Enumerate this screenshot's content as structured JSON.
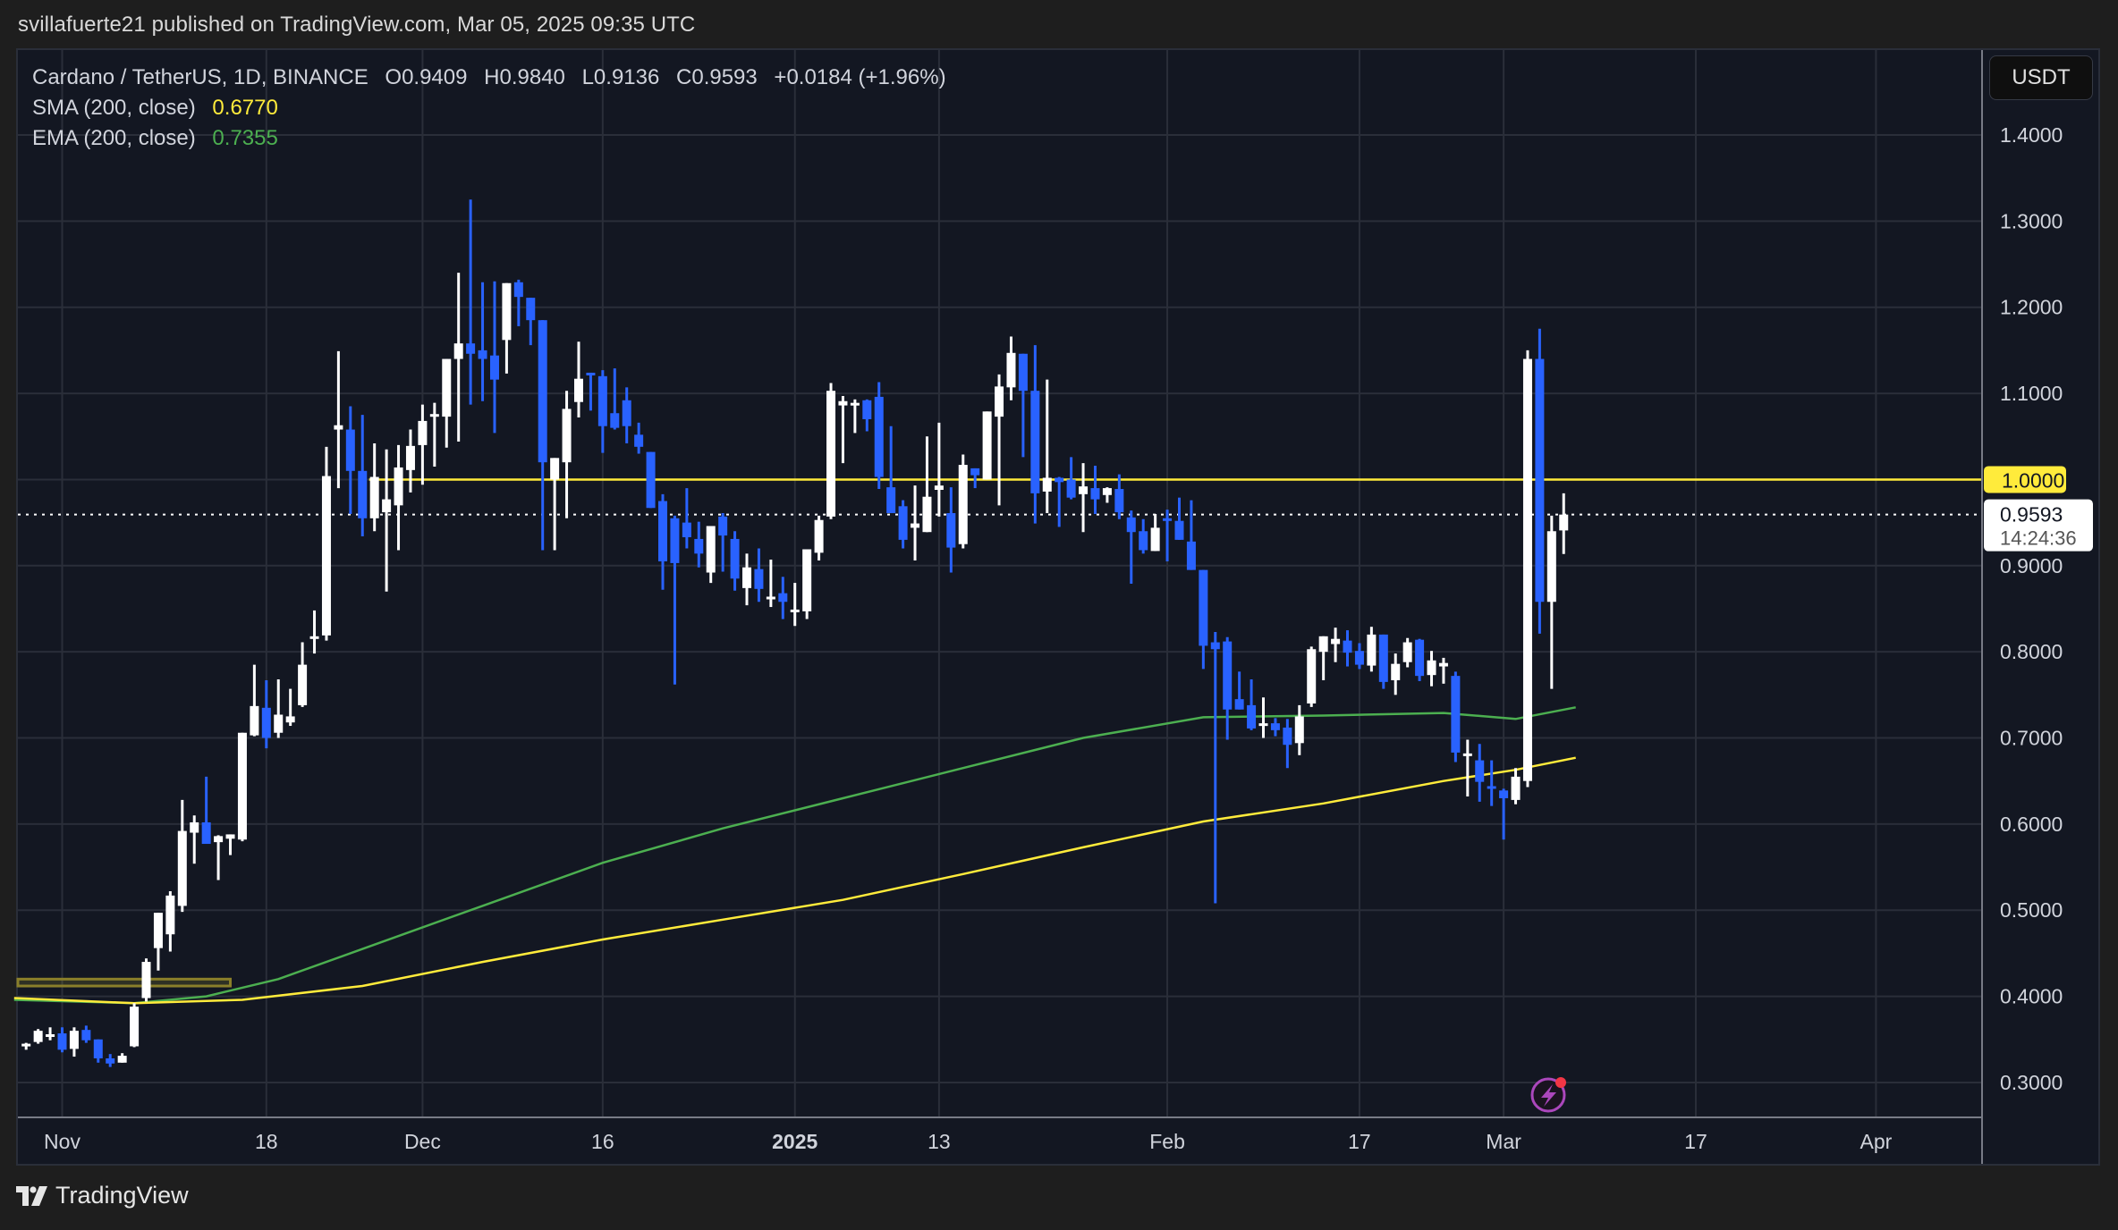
{
  "header": {
    "published_text": "svillafuerte21 published on TradingView.com, Mar 05, 2025 09:35 UTC"
  },
  "legend": {
    "symbol": "Cardano / TetherUS, 1D, BINANCE",
    "open_label": "O",
    "open": "0.9409",
    "high_label": "H",
    "high": "0.9840",
    "low_label": "L",
    "low": "0.9136",
    "close_label": "C",
    "close": "0.9593",
    "change": "+0.0184 (+1.96%)",
    "sma_label": "SMA (200, close)",
    "sma_value": "0.6770",
    "ema_label": "EMA (200, close)",
    "ema_value": "0.7355"
  },
  "price_scale": {
    "currency_button": "USDT",
    "ticks": [
      "1.4000",
      "1.3000",
      "1.2000",
      "1.1000",
      "1.0000",
      "0.9000",
      "0.8000",
      "0.7000",
      "0.6000",
      "0.5000",
      "0.4000",
      "0.3000"
    ],
    "horizontal_line_label": "1.0000",
    "last_price_label": "0.9593",
    "countdown_label": "14:24:36"
  },
  "time_scale": {
    "ticks": [
      {
        "label": "Nov",
        "day": 0,
        "bold": false
      },
      {
        "label": "18",
        "day": 17,
        "bold": false
      },
      {
        "label": "Dec",
        "day": 30,
        "bold": false
      },
      {
        "label": "16",
        "day": 45,
        "bold": false
      },
      {
        "label": "2025",
        "day": 61,
        "bold": true
      },
      {
        "label": "13",
        "day": 73,
        "bold": false
      },
      {
        "label": "Feb",
        "day": 92,
        "bold": false
      },
      {
        "label": "17",
        "day": 108,
        "bold": false
      },
      {
        "label": "Mar",
        "day": 120,
        "bold": false
      },
      {
        "label": "17",
        "day": 136,
        "bold": false
      },
      {
        "label": "Apr",
        "day": 151,
        "bold": false
      }
    ]
  },
  "footer": {
    "brand": "TradingView"
  },
  "colors": {
    "up": "#ffffff",
    "down": "#2962ff",
    "sma": "#ffeb3b",
    "ema": "#4caf50",
    "grid": "#2a2e39",
    "hline": "#ffeb3b",
    "background": "#131722"
  },
  "chart_data": {
    "type": "candlestick",
    "title": "Cardano / TetherUS, 1D, BINANCE",
    "xlabel": "",
    "ylabel": "USDT",
    "ylim": [
      0.28,
      1.42
    ],
    "x_unit": "days since Nov 1, 2024",
    "legend": [
      "SMA (200, close) 0.6770",
      "EMA (200, close) 0.7355"
    ],
    "annotations": [
      {
        "type": "horizontal_line",
        "price": 1.0,
        "from_day": 26,
        "label": "1.0000",
        "color": "#ffeb3b"
      },
      {
        "type": "rectangle",
        "price_low": 0.412,
        "price_high": 0.42,
        "from_day": -4,
        "to_day": 14,
        "color": "#ffeb3b"
      },
      {
        "type": "last_price_line",
        "price": 0.9593
      }
    ],
    "candles": [
      {
        "d": -3,
        "o": 0.343,
        "h": 0.346,
        "l": 0.338,
        "c": 0.345
      },
      {
        "d": -2,
        "o": 0.347,
        "h": 0.362,
        "l": 0.345,
        "c": 0.36
      },
      {
        "d": -1,
        "o": 0.355,
        "h": 0.364,
        "l": 0.349,
        "c": 0.356
      },
      {
        "d": 0,
        "o": 0.357,
        "h": 0.364,
        "l": 0.335,
        "c": 0.338
      },
      {
        "d": 1,
        "o": 0.339,
        "h": 0.364,
        "l": 0.33,
        "c": 0.36
      },
      {
        "d": 2,
        "o": 0.361,
        "h": 0.366,
        "l": 0.346,
        "c": 0.349
      },
      {
        "d": 3,
        "o": 0.35,
        "h": 0.35,
        "l": 0.323,
        "c": 0.328
      },
      {
        "d": 4,
        "o": 0.328,
        "h": 0.333,
        "l": 0.318,
        "c": 0.322
      },
      {
        "d": 5,
        "o": 0.323,
        "h": 0.334,
        "l": 0.323,
        "c": 0.331
      },
      {
        "d": 6,
        "o": 0.342,
        "h": 0.392,
        "l": 0.341,
        "c": 0.388
      },
      {
        "d": 7,
        "o": 0.398,
        "h": 0.444,
        "l": 0.394,
        "c": 0.44
      },
      {
        "d": 8,
        "o": 0.456,
        "h": 0.482,
        "l": 0.43,
        "c": 0.497
      },
      {
        "d": 9,
        "o": 0.472,
        "h": 0.522,
        "l": 0.452,
        "c": 0.517
      },
      {
        "d": 10,
        "o": 0.505,
        "h": 0.628,
        "l": 0.498,
        "c": 0.592
      },
      {
        "d": 11,
        "o": 0.59,
        "h": 0.61,
        "l": 0.554,
        "c": 0.602
      },
      {
        "d": 12,
        "o": 0.602,
        "h": 0.655,
        "l": 0.578,
        "c": 0.577
      },
      {
        "d": 13,
        "o": 0.579,
        "h": 0.587,
        "l": 0.535,
        "c": 0.586
      },
      {
        "d": 14,
        "o": 0.583,
        "h": 0.583,
        "l": 0.564,
        "c": 0.588
      },
      {
        "d": 15,
        "o": 0.582,
        "h": 0.62,
        "l": 0.58,
        "c": 0.706
      },
      {
        "d": 16,
        "o": 0.703,
        "h": 0.785,
        "l": 0.702,
        "c": 0.737
      },
      {
        "d": 17,
        "o": 0.735,
        "h": 0.767,
        "l": 0.688,
        "c": 0.7
      },
      {
        "d": 18,
        "o": 0.706,
        "h": 0.768,
        "l": 0.7,
        "c": 0.727
      },
      {
        "d": 19,
        "o": 0.718,
        "h": 0.757,
        "l": 0.714,
        "c": 0.725
      },
      {
        "d": 20,
        "o": 0.738,
        "h": 0.811,
        "l": 0.736,
        "c": 0.785
      },
      {
        "d": 21,
        "o": 0.817,
        "h": 0.848,
        "l": 0.798,
        "c": 0.818
      },
      {
        "d": 22,
        "o": 0.819,
        "h": 1.038,
        "l": 0.813,
        "c": 1.004
      },
      {
        "d": 23,
        "o": 1.058,
        "h": 1.149,
        "l": 0.99,
        "c": 1.063
      },
      {
        "d": 24,
        "o": 1.058,
        "h": 1.085,
        "l": 0.96,
        "c": 1.01
      },
      {
        "d": 25,
        "o": 1.01,
        "h": 1.075,
        "l": 0.934,
        "c": 0.955
      },
      {
        "d": 26,
        "o": 0.955,
        "h": 1.042,
        "l": 0.94,
        "c": 1.003
      },
      {
        "d": 27,
        "o": 0.962,
        "h": 1.035,
        "l": 0.87,
        "c": 0.977
      },
      {
        "d": 28,
        "o": 0.97,
        "h": 1.04,
        "l": 0.918,
        "c": 1.014
      },
      {
        "d": 29,
        "o": 1.011,
        "h": 1.058,
        "l": 0.985,
        "c": 1.039
      },
      {
        "d": 30,
        "o": 1.04,
        "h": 1.087,
        "l": 0.994,
        "c": 1.068
      },
      {
        "d": 31,
        "o": 1.075,
        "h": 1.089,
        "l": 1.015,
        "c": 1.076
      },
      {
        "d": 32,
        "o": 1.073,
        "h": 1.127,
        "l": 1.037,
        "c": 1.14
      },
      {
        "d": 33,
        "o": 1.14,
        "h": 1.24,
        "l": 1.044,
        "c": 1.158
      },
      {
        "d": 34,
        "o": 1.158,
        "h": 1.325,
        "l": 1.087,
        "c": 1.146
      },
      {
        "d": 35,
        "o": 1.15,
        "h": 1.229,
        "l": 1.091,
        "c": 1.14
      },
      {
        "d": 36,
        "o": 1.144,
        "h": 1.23,
        "l": 1.054,
        "c": 1.116
      },
      {
        "d": 37,
        "o": 1.162,
        "h": 1.225,
        "l": 1.123,
        "c": 1.228
      },
      {
        "d": 38,
        "o": 1.229,
        "h": 1.232,
        "l": 1.178,
        "c": 1.212
      },
      {
        "d": 39,
        "o": 1.211,
        "h": 1.211,
        "l": 1.156,
        "c": 1.185
      },
      {
        "d": 40,
        "o": 1.185,
        "h": 1.185,
        "l": 0.918,
        "c": 1.02
      },
      {
        "d": 41,
        "o": 1.0,
        "h": 1.022,
        "l": 0.918,
        "c": 1.025
      },
      {
        "d": 42,
        "o": 1.02,
        "h": 1.103,
        "l": 0.955,
        "c": 1.082
      },
      {
        "d": 43,
        "o": 1.09,
        "h": 1.16,
        "l": 1.072,
        "c": 1.117
      },
      {
        "d": 44,
        "o": 1.124,
        "h": 1.124,
        "l": 1.08,
        "c": 1.123
      },
      {
        "d": 45,
        "o": 1.12,
        "h": 1.127,
        "l": 1.031,
        "c": 1.062
      },
      {
        "d": 46,
        "o": 1.077,
        "h": 1.129,
        "l": 1.058,
        "c": 1.06
      },
      {
        "d": 47,
        "o": 1.092,
        "h": 1.107,
        "l": 1.042,
        "c": 1.062
      },
      {
        "d": 48,
        "o": 1.052,
        "h": 1.066,
        "l": 1.03,
        "c": 1.038
      },
      {
        "d": 49,
        "o": 1.032,
        "h": 1.02,
        "l": 0.97,
        "c": 0.967
      },
      {
        "d": 50,
        "o": 0.975,
        "h": 0.983,
        "l": 0.872,
        "c": 0.905
      },
      {
        "d": 51,
        "o": 0.955,
        "h": 0.958,
        "l": 0.762,
        "c": 0.903
      },
      {
        "d": 52,
        "o": 0.95,
        "h": 0.99,
        "l": 0.92,
        "c": 0.933
      },
      {
        "d": 53,
        "o": 0.931,
        "h": 0.951,
        "l": 0.898,
        "c": 0.914
      },
      {
        "d": 54,
        "o": 0.892,
        "h": 0.937,
        "l": 0.88,
        "c": 0.946
      },
      {
        "d": 55,
        "o": 0.957,
        "h": 0.961,
        "l": 0.893,
        "c": 0.935
      },
      {
        "d": 56,
        "o": 0.931,
        "h": 0.94,
        "l": 0.871,
        "c": 0.885
      },
      {
        "d": 57,
        "o": 0.874,
        "h": 0.914,
        "l": 0.854,
        "c": 0.898
      },
      {
        "d": 58,
        "o": 0.896,
        "h": 0.92,
        "l": 0.858,
        "c": 0.873
      },
      {
        "d": 59,
        "o": 0.862,
        "h": 0.907,
        "l": 0.852,
        "c": 0.864
      },
      {
        "d": 60,
        "o": 0.868,
        "h": 0.887,
        "l": 0.838,
        "c": 0.858
      },
      {
        "d": 61,
        "o": 0.847,
        "h": 0.88,
        "l": 0.83,
        "c": 0.849
      },
      {
        "d": 62,
        "o": 0.847,
        "h": 0.902,
        "l": 0.838,
        "c": 0.919
      },
      {
        "d": 63,
        "o": 0.915,
        "h": 0.958,
        "l": 0.906,
        "c": 0.953
      },
      {
        "d": 64,
        "o": 0.957,
        "h": 1.112,
        "l": 0.954,
        "c": 1.103
      },
      {
        "d": 65,
        "o": 1.086,
        "h": 1.097,
        "l": 1.019,
        "c": 1.091
      },
      {
        "d": 66,
        "o": 1.087,
        "h": 1.093,
        "l": 1.054,
        "c": 1.089
      },
      {
        "d": 67,
        "o": 1.092,
        "h": 1.093,
        "l": 1.056,
        "c": 1.07
      },
      {
        "d": 68,
        "o": 1.096,
        "h": 1.113,
        "l": 0.989,
        "c": 1.003
      },
      {
        "d": 69,
        "o": 0.991,
        "h": 1.062,
        "l": 0.969,
        "c": 0.961
      },
      {
        "d": 70,
        "o": 0.969,
        "h": 0.976,
        "l": 0.92,
        "c": 0.93
      },
      {
        "d": 71,
        "o": 0.944,
        "h": 0.993,
        "l": 0.906,
        "c": 0.949
      },
      {
        "d": 72,
        "o": 0.939,
        "h": 1.05,
        "l": 0.939,
        "c": 0.98
      },
      {
        "d": 73,
        "o": 0.988,
        "h": 1.066,
        "l": 0.957,
        "c": 0.993
      },
      {
        "d": 74,
        "o": 0.961,
        "h": 0.991,
        "l": 0.892,
        "c": 0.921
      },
      {
        "d": 75,
        "o": 0.925,
        "h": 1.029,
        "l": 0.92,
        "c": 1.017
      },
      {
        "d": 76,
        "o": 1.013,
        "h": 1.004,
        "l": 0.99,
        "c": 1.005
      },
      {
        "d": 77,
        "o": 1.0,
        "h": 1.074,
        "l": 1.0,
        "c": 1.079
      },
      {
        "d": 78,
        "o": 1.073,
        "h": 1.122,
        "l": 0.97,
        "c": 1.108
      },
      {
        "d": 79,
        "o": 1.107,
        "h": 1.166,
        "l": 1.092,
        "c": 1.147
      },
      {
        "d": 80,
        "o": 1.146,
        "h": 1.145,
        "l": 1.026,
        "c": 1.103
      },
      {
        "d": 81,
        "o": 1.103,
        "h": 1.156,
        "l": 0.949,
        "c": 0.984
      },
      {
        "d": 82,
        "o": 0.986,
        "h": 1.116,
        "l": 0.961,
        "c": 1.002
      },
      {
        "d": 83,
        "o": 1.002,
        "h": 1.003,
        "l": 0.945,
        "c": 0.997
      },
      {
        "d": 84,
        "o": 1.0,
        "h": 1.026,
        "l": 0.977,
        "c": 0.979
      },
      {
        "d": 85,
        "o": 0.983,
        "h": 1.019,
        "l": 0.939,
        "c": 0.992
      },
      {
        "d": 86,
        "o": 0.99,
        "h": 1.016,
        "l": 0.96,
        "c": 0.977
      },
      {
        "d": 87,
        "o": 0.982,
        "h": 0.991,
        "l": 0.973,
        "c": 0.99
      },
      {
        "d": 88,
        "o": 0.989,
        "h": 1.006,
        "l": 0.954,
        "c": 0.962
      },
      {
        "d": 89,
        "o": 0.956,
        "h": 0.964,
        "l": 0.879,
        "c": 0.939
      },
      {
        "d": 90,
        "o": 0.94,
        "h": 0.954,
        "l": 0.914,
        "c": 0.918
      },
      {
        "d": 91,
        "o": 0.917,
        "h": 0.96,
        "l": 0.917,
        "c": 0.944
      },
      {
        "d": 92,
        "o": 0.955,
        "h": 0.965,
        "l": 0.905,
        "c": 0.952
      },
      {
        "d": 93,
        "o": 0.952,
        "h": 0.979,
        "l": 0.936,
        "c": 0.93
      },
      {
        "d": 94,
        "o": 0.928,
        "h": 0.976,
        "l": 0.9,
        "c": 0.895
      },
      {
        "d": 95,
        "o": 0.895,
        "h": 0.895,
        "l": 0.78,
        "c": 0.807
      },
      {
        "d": 96,
        "o": 0.811,
        "h": 0.823,
        "l": 0.508,
        "c": 0.803
      },
      {
        "d": 97,
        "o": 0.812,
        "h": 0.817,
        "l": 0.698,
        "c": 0.733
      },
      {
        "d": 98,
        "o": 0.745,
        "h": 0.777,
        "l": 0.735,
        "c": 0.733
      },
      {
        "d": 99,
        "o": 0.738,
        "h": 0.768,
        "l": 0.709,
        "c": 0.711
      },
      {
        "d": 100,
        "o": 0.717,
        "h": 0.747,
        "l": 0.7,
        "c": 0.717
      },
      {
        "d": 101,
        "o": 0.717,
        "h": 0.723,
        "l": 0.702,
        "c": 0.709
      },
      {
        "d": 102,
        "o": 0.712,
        "h": 0.722,
        "l": 0.665,
        "c": 0.692
      },
      {
        "d": 103,
        "o": 0.694,
        "h": 0.738,
        "l": 0.68,
        "c": 0.725
      },
      {
        "d": 104,
        "o": 0.74,
        "h": 0.806,
        "l": 0.736,
        "c": 0.803
      },
      {
        "d": 105,
        "o": 0.8,
        "h": 0.803,
        "l": 0.767,
        "c": 0.818
      },
      {
        "d": 106,
        "o": 0.809,
        "h": 0.828,
        "l": 0.788,
        "c": 0.815
      },
      {
        "d": 107,
        "o": 0.813,
        "h": 0.825,
        "l": 0.783,
        "c": 0.799
      },
      {
        "d": 108,
        "o": 0.801,
        "h": 0.81,
        "l": 0.78,
        "c": 0.785
      },
      {
        "d": 109,
        "o": 0.784,
        "h": 0.829,
        "l": 0.777,
        "c": 0.82
      },
      {
        "d": 110,
        "o": 0.82,
        "h": 0.817,
        "l": 0.757,
        "c": 0.765
      },
      {
        "d": 111,
        "o": 0.767,
        "h": 0.798,
        "l": 0.75,
        "c": 0.786
      },
      {
        "d": 112,
        "o": 0.788,
        "h": 0.816,
        "l": 0.782,
        "c": 0.811
      },
      {
        "d": 113,
        "o": 0.814,
        "h": 0.815,
        "l": 0.766,
        "c": 0.772
      },
      {
        "d": 114,
        "o": 0.773,
        "h": 0.801,
        "l": 0.76,
        "c": 0.79
      },
      {
        "d": 115,
        "o": 0.783,
        "h": 0.793,
        "l": 0.763,
        "c": 0.787
      },
      {
        "d": 116,
        "o": 0.772,
        "h": 0.777,
        "l": 0.672,
        "c": 0.683
      },
      {
        "d": 117,
        "o": 0.682,
        "h": 0.698,
        "l": 0.632,
        "c": 0.682
      },
      {
        "d": 118,
        "o": 0.674,
        "h": 0.693,
        "l": 0.626,
        "c": 0.649
      },
      {
        "d": 119,
        "o": 0.644,
        "h": 0.674,
        "l": 0.621,
        "c": 0.643
      },
      {
        "d": 120,
        "o": 0.639,
        "h": 0.641,
        "l": 0.582,
        "c": 0.63
      },
      {
        "d": 121,
        "o": 0.628,
        "h": 0.665,
        "l": 0.623,
        "c": 0.655
      },
      {
        "d": 122,
        "o": 0.65,
        "h": 1.15,
        "l": 0.643,
        "c": 1.14
      },
      {
        "d": 123,
        "o": 1.14,
        "h": 1.175,
        "l": 0.821,
        "c": 0.858
      },
      {
        "d": 124,
        "o": 0.858,
        "h": 0.958,
        "l": 0.757,
        "c": 0.94
      },
      {
        "d": 125,
        "o": 0.9409,
        "h": 0.984,
        "l": 0.9136,
        "c": 0.9593
      }
    ],
    "sma_series": [
      {
        "d": -4,
        "v": 0.398
      },
      {
        "d": 6,
        "v": 0.392
      },
      {
        "d": 15,
        "v": 0.396
      },
      {
        "d": 25,
        "v": 0.412
      },
      {
        "d": 35,
        "v": 0.44
      },
      {
        "d": 45,
        "v": 0.466
      },
      {
        "d": 55,
        "v": 0.489
      },
      {
        "d": 65,
        "v": 0.512
      },
      {
        "d": 75,
        "v": 0.542
      },
      {
        "d": 85,
        "v": 0.573
      },
      {
        "d": 95,
        "v": 0.603
      },
      {
        "d": 105,
        "v": 0.624
      },
      {
        "d": 115,
        "v": 0.65
      },
      {
        "d": 121,
        "v": 0.663
      },
      {
        "d": 126,
        "v": 0.677
      }
    ],
    "ema_series": [
      {
        "d": -4,
        "v": 0.396
      },
      {
        "d": 6,
        "v": 0.392
      },
      {
        "d": 12,
        "v": 0.4
      },
      {
        "d": 18,
        "v": 0.42
      },
      {
        "d": 25,
        "v": 0.455
      },
      {
        "d": 35,
        "v": 0.505
      },
      {
        "d": 45,
        "v": 0.555
      },
      {
        "d": 55,
        "v": 0.595
      },
      {
        "d": 65,
        "v": 0.63
      },
      {
        "d": 75,
        "v": 0.665
      },
      {
        "d": 85,
        "v": 0.7
      },
      {
        "d": 95,
        "v": 0.724
      },
      {
        "d": 105,
        "v": 0.726
      },
      {
        "d": 115,
        "v": 0.729
      },
      {
        "d": 121,
        "v": 0.722
      },
      {
        "d": 126,
        "v": 0.7355
      }
    ]
  }
}
